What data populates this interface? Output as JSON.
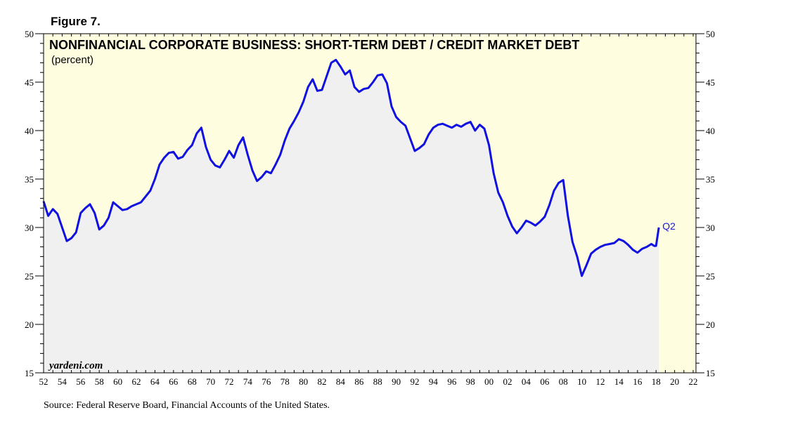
{
  "figure_label": "Figure 7.",
  "source": "Source: Federal Reserve Board, Financial Accounts of the United States.",
  "watermark": "yardeni.com",
  "colors": {
    "line": "#1010e0",
    "fill": "#f0f0f0",
    "background": "#fffde0",
    "end_label": "#1a1ad8"
  },
  "chart_data": {
    "type": "area",
    "title": "NONFINANCIAL CORPORATE BUSINESS: SHORT-TERM DEBT / CREDIT MARKET DEBT",
    "subtitle": "(percent)",
    "xlabel": "",
    "ylabel": "",
    "xlim": [
      1952,
      2022.3
    ],
    "ylim": [
      15,
      50
    ],
    "y_ticks": [
      15,
      20,
      25,
      30,
      35,
      40,
      45,
      50
    ],
    "x_tick_labels": [
      "52",
      "54",
      "56",
      "58",
      "60",
      "62",
      "64",
      "66",
      "68",
      "70",
      "72",
      "74",
      "76",
      "78",
      "80",
      "82",
      "84",
      "86",
      "88",
      "90",
      "92",
      "94",
      "96",
      "98",
      "00",
      "02",
      "04",
      "06",
      "08",
      "10",
      "12",
      "14",
      "16",
      "18",
      "20",
      "22"
    ],
    "y_axes": "both",
    "grid": false,
    "end_label": "Q2",
    "series": [
      {
        "x": [
          1952.0,
          1952.5,
          1953.0,
          1953.5,
          1954.0,
          1954.5,
          1955.0,
          1955.5,
          1956.0,
          1956.5,
          1957.0,
          1957.5,
          1958.0,
          1958.5,
          1959.0,
          1959.5,
          1960.0,
          1960.5,
          1961.0,
          1961.5,
          1962.0,
          1962.5,
          1963.0,
          1963.5,
          1964.0,
          1964.5,
          1965.0,
          1965.5,
          1966.0,
          1966.5,
          1967.0,
          1967.5,
          1968.0,
          1968.5,
          1969.0,
          1969.5,
          1970.0,
          1970.5,
          1971.0,
          1971.5,
          1972.0,
          1972.5,
          1973.0,
          1973.5,
          1974.0,
          1974.5,
          1975.0,
          1975.5,
          1976.0,
          1976.5,
          1977.0,
          1977.5,
          1978.0,
          1978.5,
          1979.0,
          1979.5,
          1980.0,
          1980.5,
          1981.0,
          1981.5,
          1982.0,
          1982.5,
          1983.0,
          1983.5,
          1984.0,
          1984.5,
          1985.0,
          1985.5,
          1986.0,
          1986.5,
          1987.0,
          1987.5,
          1988.0,
          1988.5,
          1989.0,
          1989.5,
          1990.0,
          1990.5,
          1991.0,
          1991.5,
          1992.0,
          1992.5,
          1993.0,
          1993.5,
          1994.0,
          1994.5,
          1995.0,
          1995.5,
          1996.0,
          1996.5,
          1997.0,
          1997.5,
          1998.0,
          1998.5,
          1999.0,
          1999.5,
          2000.0,
          2000.5,
          2001.0,
          2001.5,
          2002.0,
          2002.5,
          2003.0,
          2003.5,
          2004.0,
          2004.5,
          2005.0,
          2005.5,
          2006.0,
          2006.5,
          2007.0,
          2007.5,
          2008.0,
          2008.5,
          2009.0,
          2009.5,
          2010.0,
          2010.5,
          2011.0,
          2011.5,
          2012.0,
          2012.5,
          2013.0,
          2013.5,
          2014.0,
          2014.5,
          2015.0,
          2015.5,
          2016.0,
          2016.5,
          2017.0,
          2017.5,
          2017.8,
          2018.0,
          2018.3
        ],
        "values": [
          32.7,
          31.2,
          31.9,
          31.4,
          30.0,
          28.6,
          28.9,
          29.5,
          31.5,
          32.0,
          32.4,
          31.5,
          29.8,
          30.2,
          31.0,
          32.6,
          32.2,
          31.8,
          31.9,
          32.2,
          32.4,
          32.6,
          33.2,
          33.8,
          35.0,
          36.5,
          37.2,
          37.7,
          37.8,
          37.1,
          37.3,
          38.0,
          38.5,
          39.7,
          40.3,
          38.3,
          37.0,
          36.4,
          36.2,
          37.0,
          37.9,
          37.2,
          38.5,
          39.3,
          37.5,
          35.9,
          34.8,
          35.2,
          35.8,
          35.6,
          36.5,
          37.5,
          39.0,
          40.2,
          41.0,
          41.9,
          43.0,
          44.5,
          45.3,
          44.1,
          44.2,
          45.6,
          47.0,
          47.3,
          46.6,
          45.8,
          46.2,
          44.5,
          44.0,
          44.3,
          44.4,
          45.0,
          45.7,
          45.8,
          44.9,
          42.5,
          41.4,
          40.9,
          40.5,
          39.2,
          37.9,
          38.2,
          38.6,
          39.6,
          40.3,
          40.6,
          40.7,
          40.5,
          40.3,
          40.6,
          40.4,
          40.7,
          40.9,
          40.0,
          40.6,
          40.2,
          38.5,
          35.6,
          33.6,
          32.6,
          31.2,
          30.1,
          29.4,
          30.0,
          30.7,
          30.5,
          30.2,
          30.6,
          31.1,
          32.3,
          33.8,
          34.6,
          34.9,
          31.2,
          28.5,
          27.0,
          25.0,
          26.1,
          27.3,
          27.7,
          28.0,
          28.2,
          28.3,
          28.4,
          28.8,
          28.6,
          28.2,
          27.7,
          27.4,
          27.8,
          28.0,
          28.3,
          28.1,
          28.1,
          30.0
        ]
      }
    ]
  }
}
